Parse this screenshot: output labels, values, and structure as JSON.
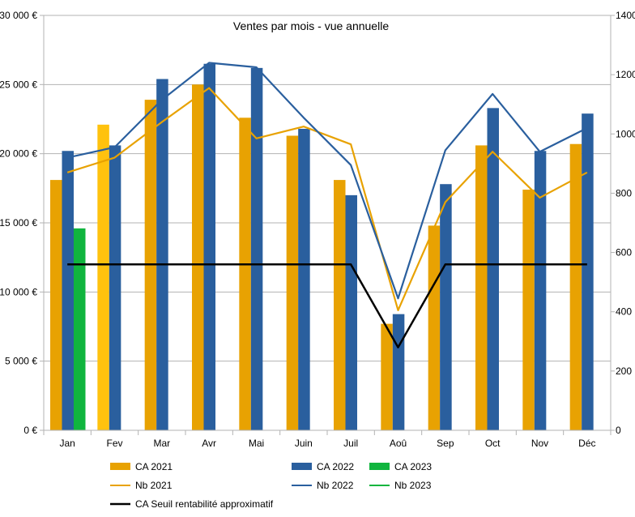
{
  "chart_data": {
    "type": "bar",
    "title": "Ventes par mois - vue annuelle",
    "categories": [
      "Jan",
      "Fev",
      "Mar",
      "Avr",
      "Mai",
      "Juin",
      "Juil",
      "Aoû",
      "Sep",
      "Oct",
      "Nov",
      "Déc"
    ],
    "y_left": {
      "ticks": [
        "0 €",
        "5 000 €",
        "10 000 €",
        "15 000 €",
        "20 000 €",
        "25 000 €",
        "30 000 €"
      ],
      "range": [
        0,
        30000
      ]
    },
    "y_right": {
      "ticks": [
        "0",
        "200",
        "400",
        "600",
        "800",
        "1000",
        "1200",
        "1400"
      ],
      "range": [
        0,
        1400
      ]
    },
    "grid": "horizontal",
    "legend_position": "bottom",
    "bar_series": [
      {
        "name": "CA 2021",
        "color": "#e8a202",
        "values": [
          18100,
          22100,
          23900,
          25000,
          22600,
          21300,
          18100,
          7700,
          14800,
          20600,
          17400,
          20700
        ],
        "highlight": {
          "index": 1,
          "color": "#ffc20e"
        }
      },
      {
        "name": "CA 2022",
        "color": "#2a5f9e",
        "values": [
          20200,
          20600,
          25400,
          26500,
          26200,
          21800,
          17000,
          8400,
          17800,
          23300,
          20200,
          22900
        ]
      },
      {
        "name": "CA 2023",
        "color": "#10b53e",
        "values": [
          14600,
          null,
          null,
          null,
          null,
          null,
          null,
          null,
          null,
          null,
          null,
          null
        ]
      }
    ],
    "line_series": [
      {
        "name": "Nb 2021",
        "color": "#e8a202",
        "axis": "right",
        "values": [
          870,
          920,
          1040,
          1155,
          985,
          1025,
          965,
          405,
          770,
          940,
          785,
          870
        ]
      },
      {
        "name": "Nb 2022",
        "color": "#2a5f9e",
        "axis": "right",
        "values": [
          920,
          955,
          1115,
          1240,
          1225,
          1055,
          895,
          445,
          945,
          1135,
          940,
          1020
        ]
      },
      {
        "name": "Nb 2023",
        "color": "#10b53e",
        "axis": "right",
        "values": []
      },
      {
        "name": "CA Seuil rentabilité approximatif",
        "color": "#000000",
        "axis": "left",
        "values": [
          12000,
          12000,
          12000,
          12000,
          12000,
          12000,
          12000,
          6000,
          12000,
          12000,
          12000,
          12000
        ]
      }
    ],
    "legend": [
      {
        "label": "CA 2021",
        "kind": "bar",
        "color": "#e8a202"
      },
      {
        "label": "CA 2022",
        "kind": "bar",
        "color": "#2a5f9e"
      },
      {
        "label": "CA 2023",
        "kind": "bar",
        "color": "#10b53e"
      },
      {
        "label": "Nb 2021",
        "kind": "line",
        "color": "#e8a202"
      },
      {
        "label": "Nb 2022",
        "kind": "line",
        "color": "#2a5f9e"
      },
      {
        "label": "Nb 2023",
        "kind": "line",
        "color": "#10b53e"
      },
      {
        "label": "CA Seuil rentabilité approximatif",
        "kind": "line",
        "color": "#000000"
      }
    ]
  }
}
